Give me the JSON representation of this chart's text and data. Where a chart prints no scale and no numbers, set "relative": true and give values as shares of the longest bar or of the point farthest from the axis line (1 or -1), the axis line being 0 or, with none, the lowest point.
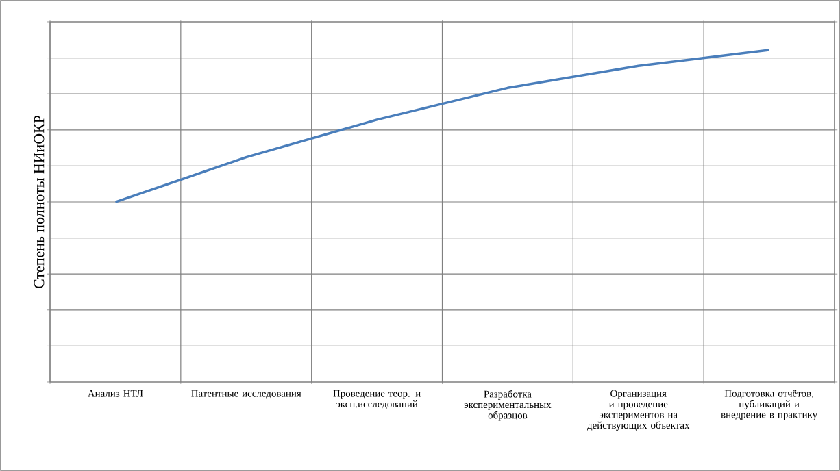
{
  "chart_data": {
    "type": "line",
    "relative": true,
    "ylabel": "Степень полноты НИиОКР",
    "categories": [
      "Анализ НТЛ",
      "Патентные исследования",
      "Проведение теор. и эксп.исследований",
      "Разработка экспериментальных образцов",
      "Организация и проведение экспериментов на действующих объектах",
      "Подготовка отчётов, публикаций и внедрение в практику"
    ],
    "values": [
      0.542,
      0.677,
      0.79,
      0.886,
      0.952,
      1.0
    ],
    "color": "#4a7ebb",
    "grid": true,
    "marker": "none",
    "line_style": "solid"
  }
}
